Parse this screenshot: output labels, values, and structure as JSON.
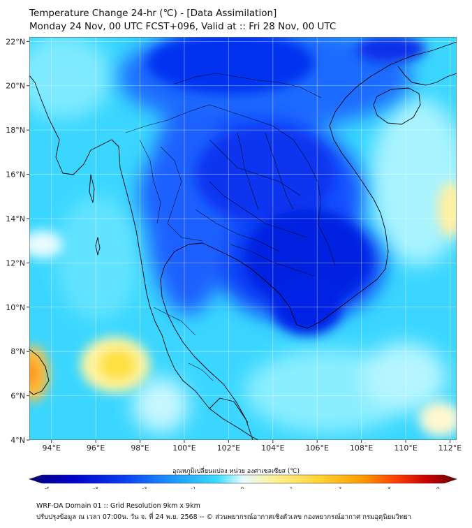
{
  "title": {
    "line1": "Temperature Change 24-hr (℃) - [Data Assimilation]",
    "line2": "Monday 24 Nov, 00 UTC FCST+096, Valid at :: Fri 28 Nov, 00 UTC"
  },
  "map": {
    "lon_range": [
      93,
      112.3
    ],
    "lat_range": [
      4,
      22.2
    ],
    "lon_ticks": [
      "94°E",
      "96°E",
      "98°E",
      "100°E",
      "102°E",
      "104°E",
      "106°E",
      "108°E",
      "110°E",
      "112°E"
    ],
    "lon_tick_values": [
      94,
      96,
      98,
      100,
      102,
      104,
      106,
      108,
      110,
      112
    ],
    "lat_ticks": [
      "4°N",
      "6°N",
      "8°N",
      "10°N",
      "12°N",
      "14°N",
      "16°N",
      "18°N",
      "20°N",
      "22°N"
    ],
    "lat_tick_values": [
      4,
      6,
      8,
      10,
      12,
      14,
      16,
      18,
      20,
      22
    ],
    "grid": true
  },
  "colorbar": {
    "label": "อุณหภูมิเปลี่ยนแปลง หน่วย องศาเซลเซียส (℃)",
    "tick_labels": [
      "-4",
      "-3",
      "-2",
      "-1",
      "0",
      "1",
      "2",
      "3",
      "4"
    ],
    "tick_values": [
      -4,
      -3,
      -2,
      -1,
      0,
      1,
      2,
      3,
      4
    ],
    "colors": [
      "#05007a",
      "#0000c8",
      "#0a3cf0",
      "#1e78ff",
      "#28b4ff",
      "#3cdcff",
      "#96f0ff",
      "#e6fbff",
      "#fffbd2",
      "#fff08c",
      "#ffd232",
      "#ff9b00",
      "#ff5000",
      "#e60000",
      "#a00000",
      "#6e0000"
    ]
  },
  "footer": {
    "line1": "WRF-DA Domain 01 :: Grid Resolution 9km x 9km",
    "line2": "ปรับปรุงข้อมูล ณ เวลา 07:00น. วัน จ. ที่ 24 พ.ย. 2568 -- © ส่วนพยากรณ์อากาศเชิงตัวเลข กองพยากรณ์อากาศ กรมอุตุนิยมวิทยา"
  }
}
